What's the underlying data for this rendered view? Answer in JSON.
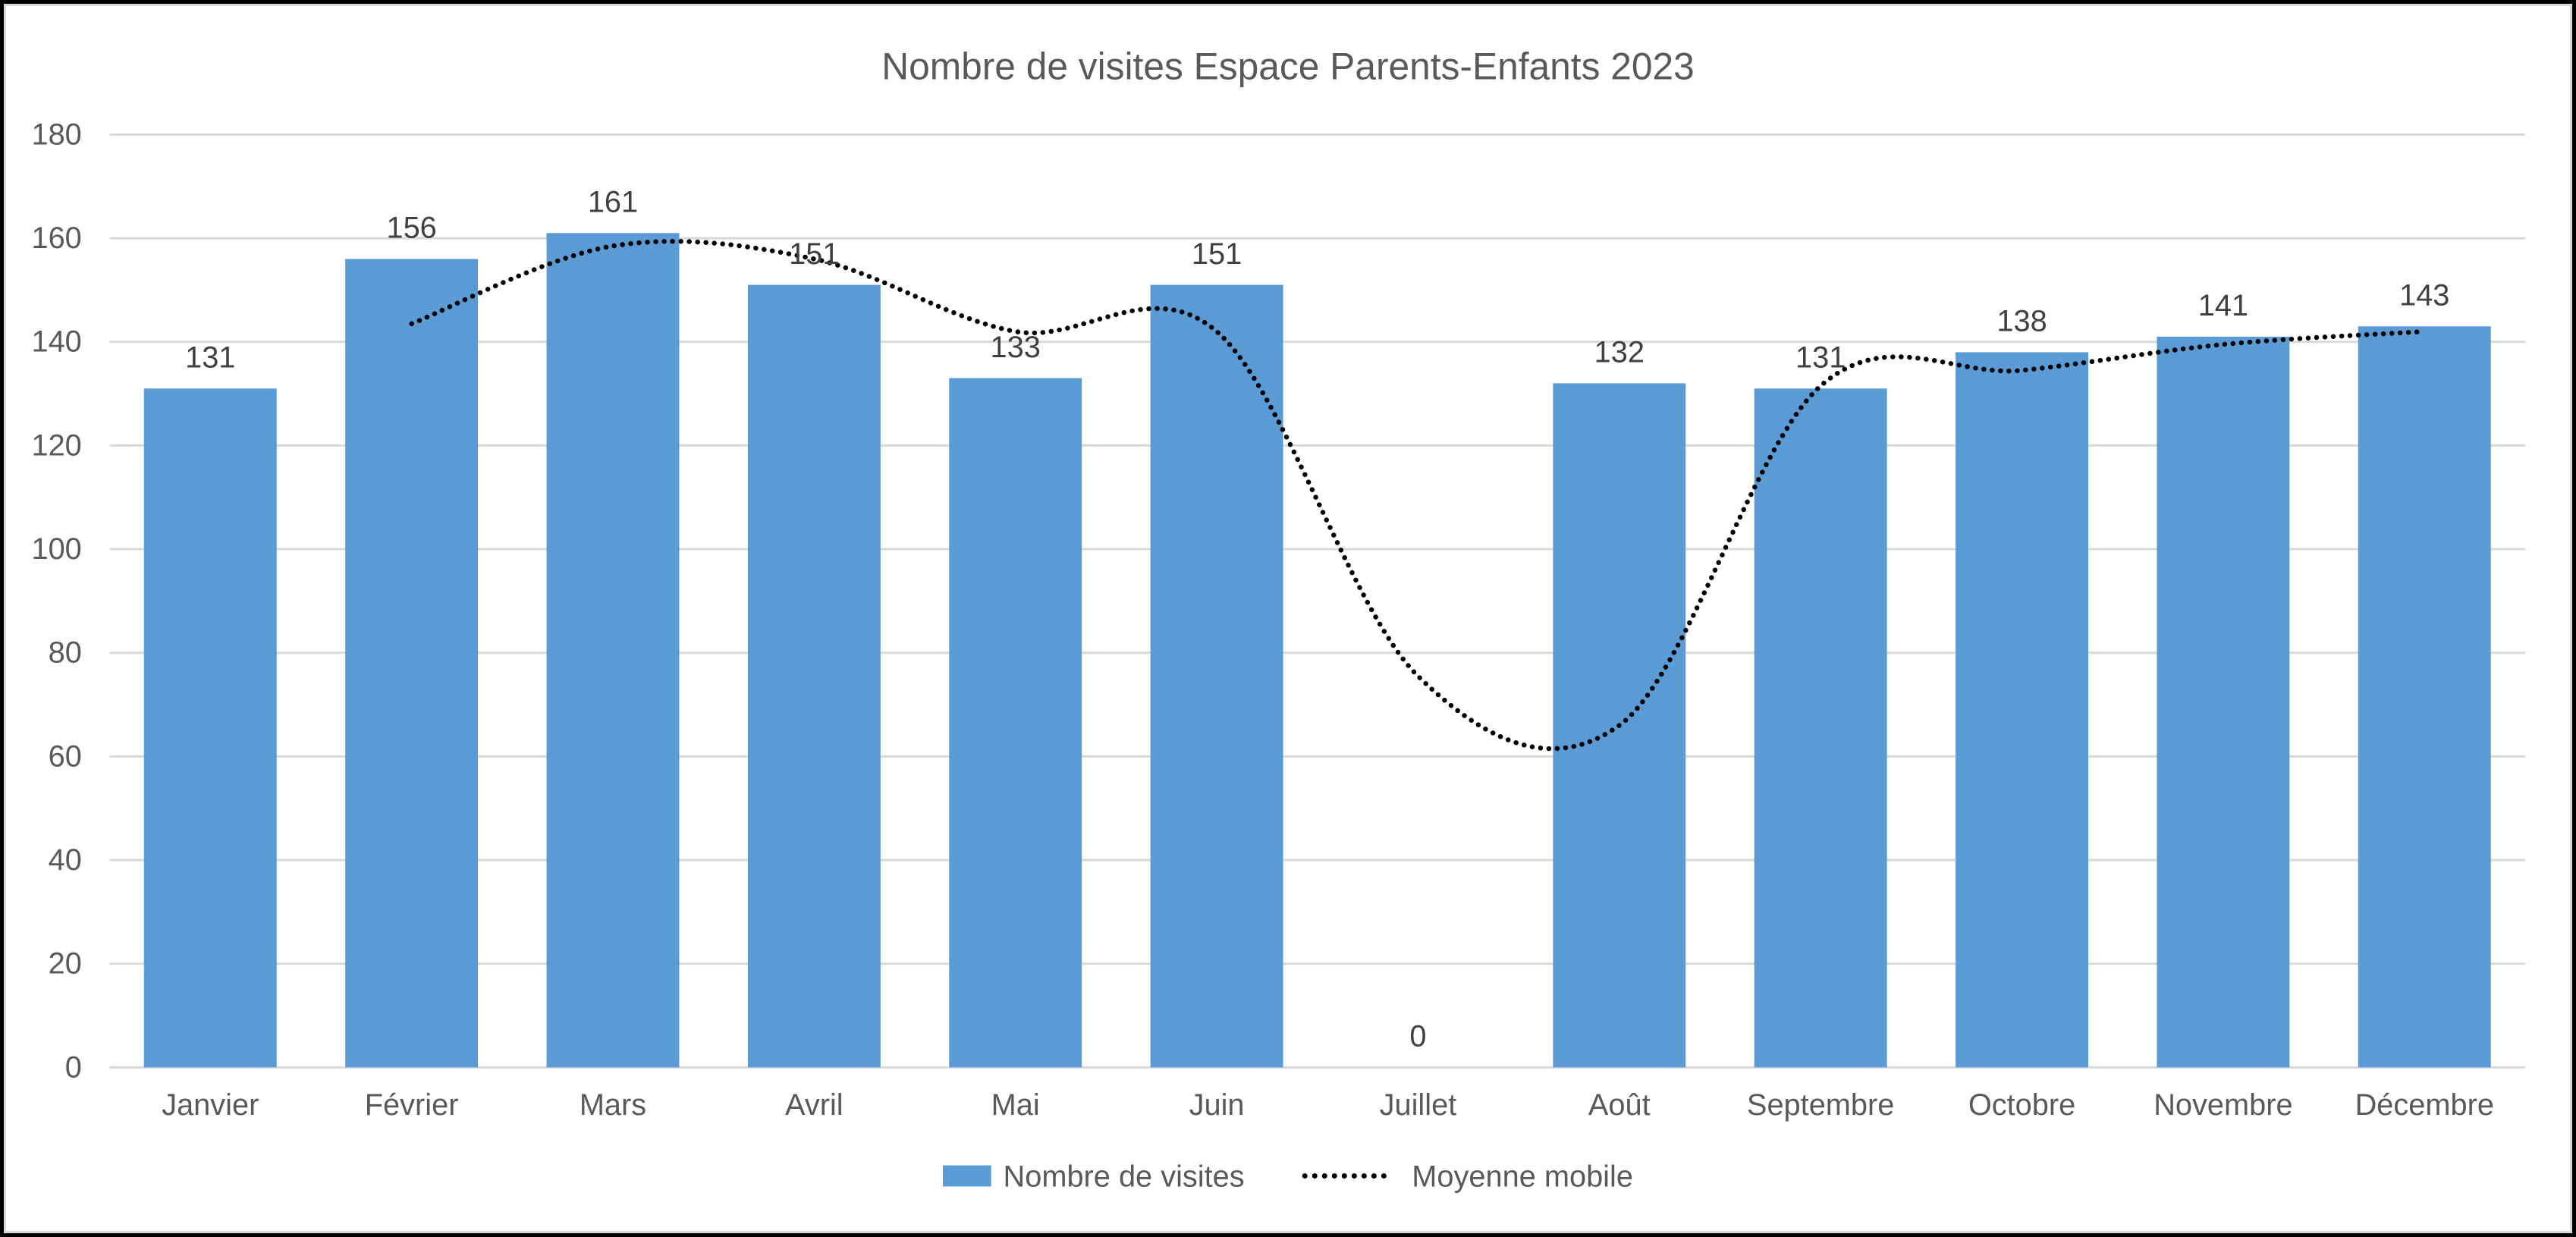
{
  "window": {
    "background": "#FFFFFF",
    "border_color": "#000000"
  },
  "styles": {
    "grid_color": "#D9D9D9",
    "axis_text_color": "#595959",
    "data_label_color": "#404040",
    "title_color": "#595959",
    "bar_color": "#5B9BD5",
    "line_color": "#000000"
  },
  "chart_data": {
    "type": "bar",
    "title": "Nombre de visites Espace Parents-Enfants 2023",
    "categories": [
      "Janvier",
      "Février",
      "Mars",
      "Avril",
      "Mai",
      "Juin",
      "Juillet",
      "Août",
      "Septembre",
      "Octobre",
      "Novembre",
      "Décembre"
    ],
    "series": [
      {
        "name": "Nombre de visites",
        "type": "bar",
        "color": "#5B9BD5",
        "values": [
          131,
          156,
          161,
          151,
          133,
          151,
          0,
          132,
          131,
          138,
          141,
          143
        ],
        "data_labels": [
          "131",
          "156",
          "161",
          "151",
          "133",
          "151",
          "0",
          "132",
          "131",
          "138",
          "141",
          "143"
        ]
      },
      {
        "name": "Moyenne mobile",
        "type": "line",
        "style": "dotted",
        "smooth": true,
        "color": "#000000",
        "values": [
          null,
          143.5,
          158.5,
          156,
          142,
          142,
          75.5,
          66,
          131.5,
          134.5,
          139.5,
          142
        ]
      }
    ],
    "xlabel": "",
    "ylabel": "",
    "ylim": [
      0,
      180
    ],
    "yticks": [
      0,
      20,
      40,
      60,
      80,
      100,
      120,
      140,
      160,
      180
    ],
    "grid": "horizontal-only",
    "legend_position": "bottom-center",
    "legend": [
      {
        "label": "Nombre de visites",
        "swatch": "bar"
      },
      {
        "label": "Moyenne mobile",
        "swatch": "dotted-line"
      }
    ]
  }
}
